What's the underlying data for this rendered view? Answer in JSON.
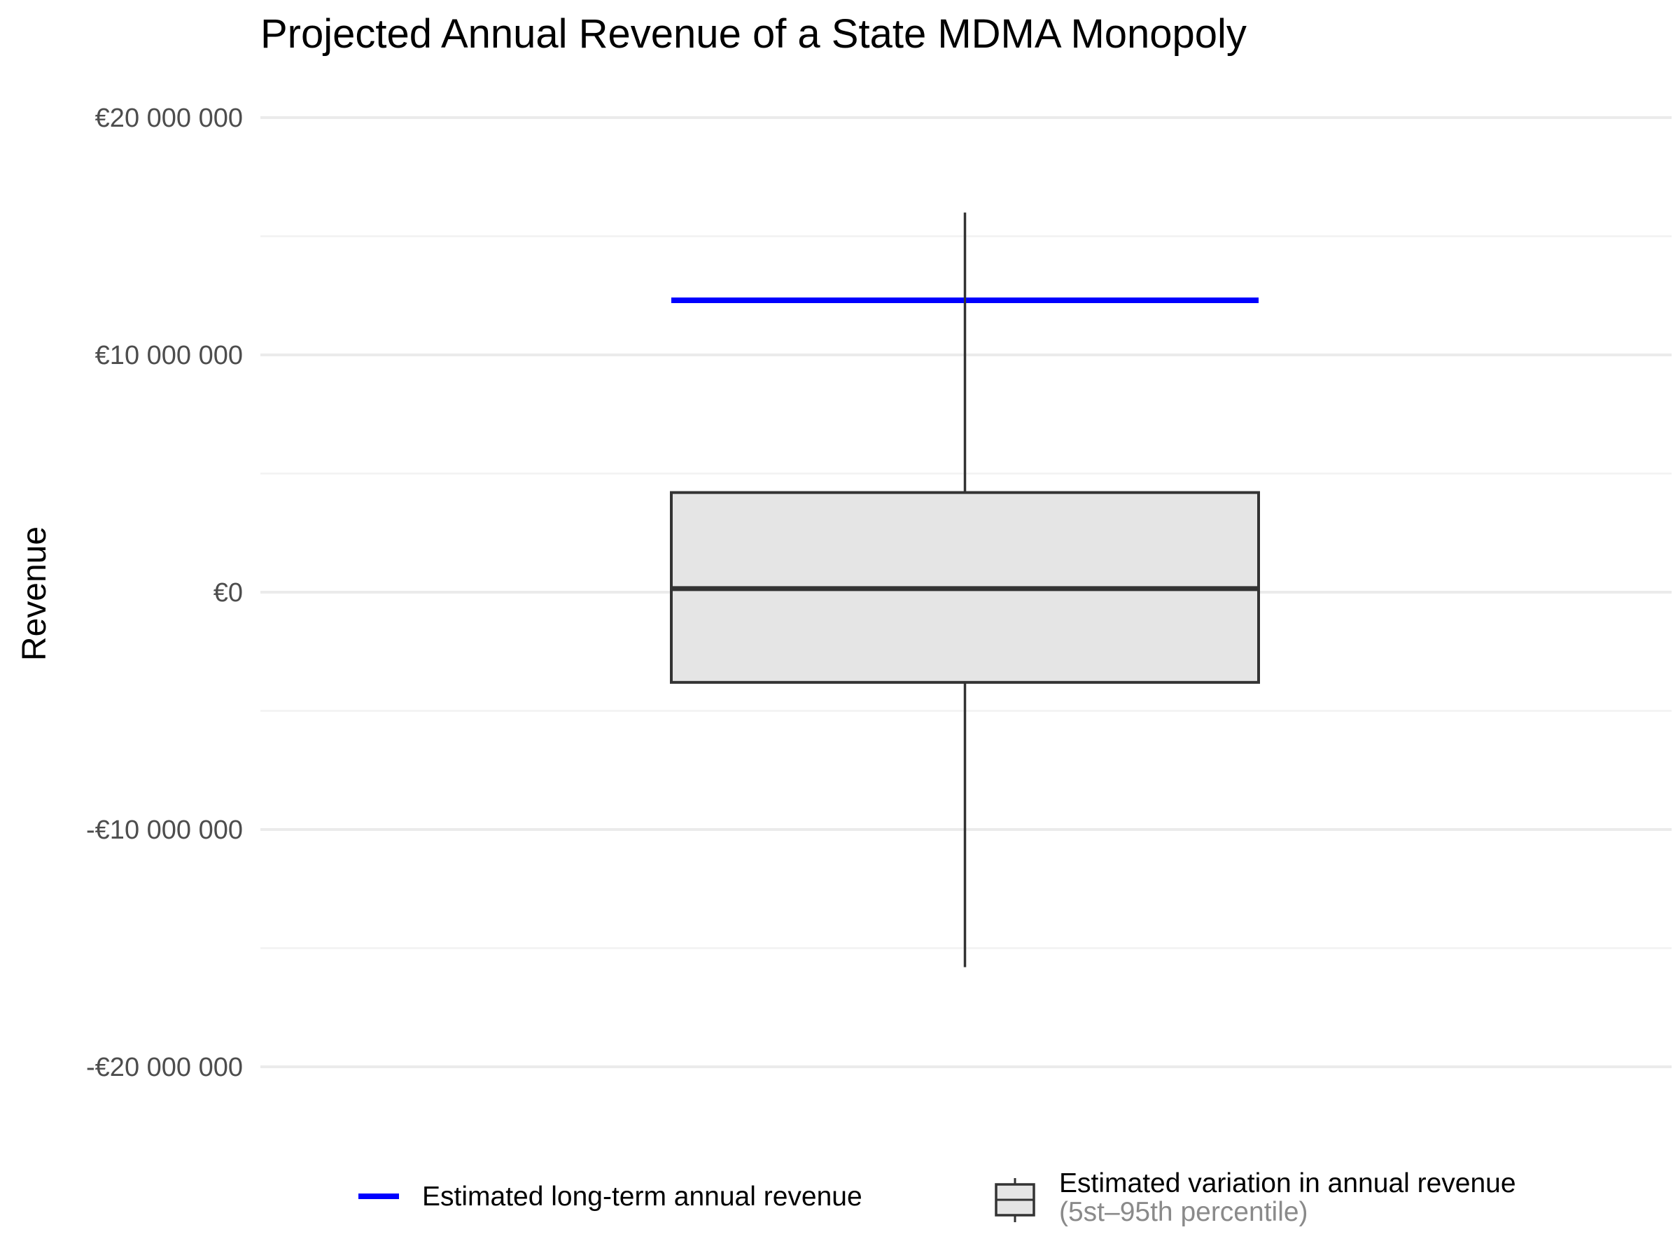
{
  "chart_data": {
    "type": "boxplot",
    "title": "Projected Annual Revenue of a State MDMA Monopoly",
    "ylabel": "Revenue",
    "xlabel": "",
    "ylim": [
      -25000000,
      22000000
    ],
    "y_ticks": [
      {
        "value": 20000000,
        "label": "€20 000 000"
      },
      {
        "value": 10000000,
        "label": "€10 000 000"
      },
      {
        "value": 0,
        "label": "€0"
      },
      {
        "value": -10000000,
        "label": "-€10 000 000"
      },
      {
        "value": -20000000,
        "label": "-€20 000 000"
      }
    ],
    "y_minor_ticks": [
      15000000,
      5000000,
      -5000000,
      -15000000
    ],
    "grid": true,
    "box": {
      "whisker_low": -15800000,
      "q1": -3800000,
      "median": 150000,
      "q3": 4200000,
      "whisker_high": 16000000
    },
    "reference_line": {
      "name": "Estimated long-term annual revenue",
      "value": 12300000
    },
    "legend": {
      "placement": "bottom",
      "items": [
        {
          "label": "Estimated long-term annual revenue",
          "sublabel": ""
        },
        {
          "label": "Estimated variation in annual revenue",
          "sublabel": "(5st–95th percentile)"
        }
      ]
    },
    "colors": {
      "reference_line": "#0000ff",
      "box_fill": "#e5e5e5",
      "box_stroke": "#333333",
      "grid": "#ebebeb"
    }
  }
}
